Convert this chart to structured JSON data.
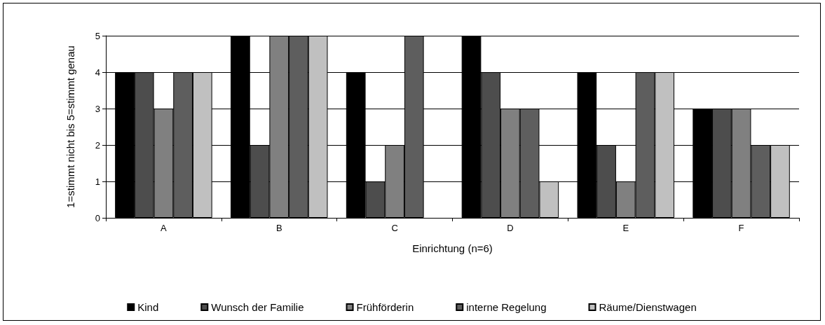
{
  "chart_data": {
    "type": "bar",
    "xlabel": "Einrichtung (n=6)",
    "ylabel": "1=stimmt nicht bis 5=stimmt genau",
    "categories": [
      "A",
      "B",
      "C",
      "D",
      "E",
      "F"
    ],
    "series": [
      {
        "name": "Kind",
        "color": "#000000",
        "values": [
          4,
          5,
          4,
          5,
          4,
          3
        ]
      },
      {
        "name": "Wunsch der Familie",
        "color": "#4d4d4d",
        "values": [
          4,
          2,
          1,
          4,
          2,
          3
        ]
      },
      {
        "name": "Frühförderin",
        "color": "#808080",
        "values": [
          3,
          5,
          2,
          3,
          1,
          3
        ]
      },
      {
        "name": "interne Regelung",
        "color": "#5e5e5e",
        "values": [
          4,
          5,
          5,
          3,
          4,
          2
        ]
      },
      {
        "name": "Räume/Dienstwagen",
        "color": "#c0c0c0",
        "values": [
          4,
          5,
          null,
          1,
          4,
          2
        ]
      }
    ],
    "ylim": [
      0,
      5
    ],
    "yticks": [
      0,
      1,
      2,
      3,
      4,
      5
    ],
    "grid": "y",
    "legend": "bottom"
  }
}
